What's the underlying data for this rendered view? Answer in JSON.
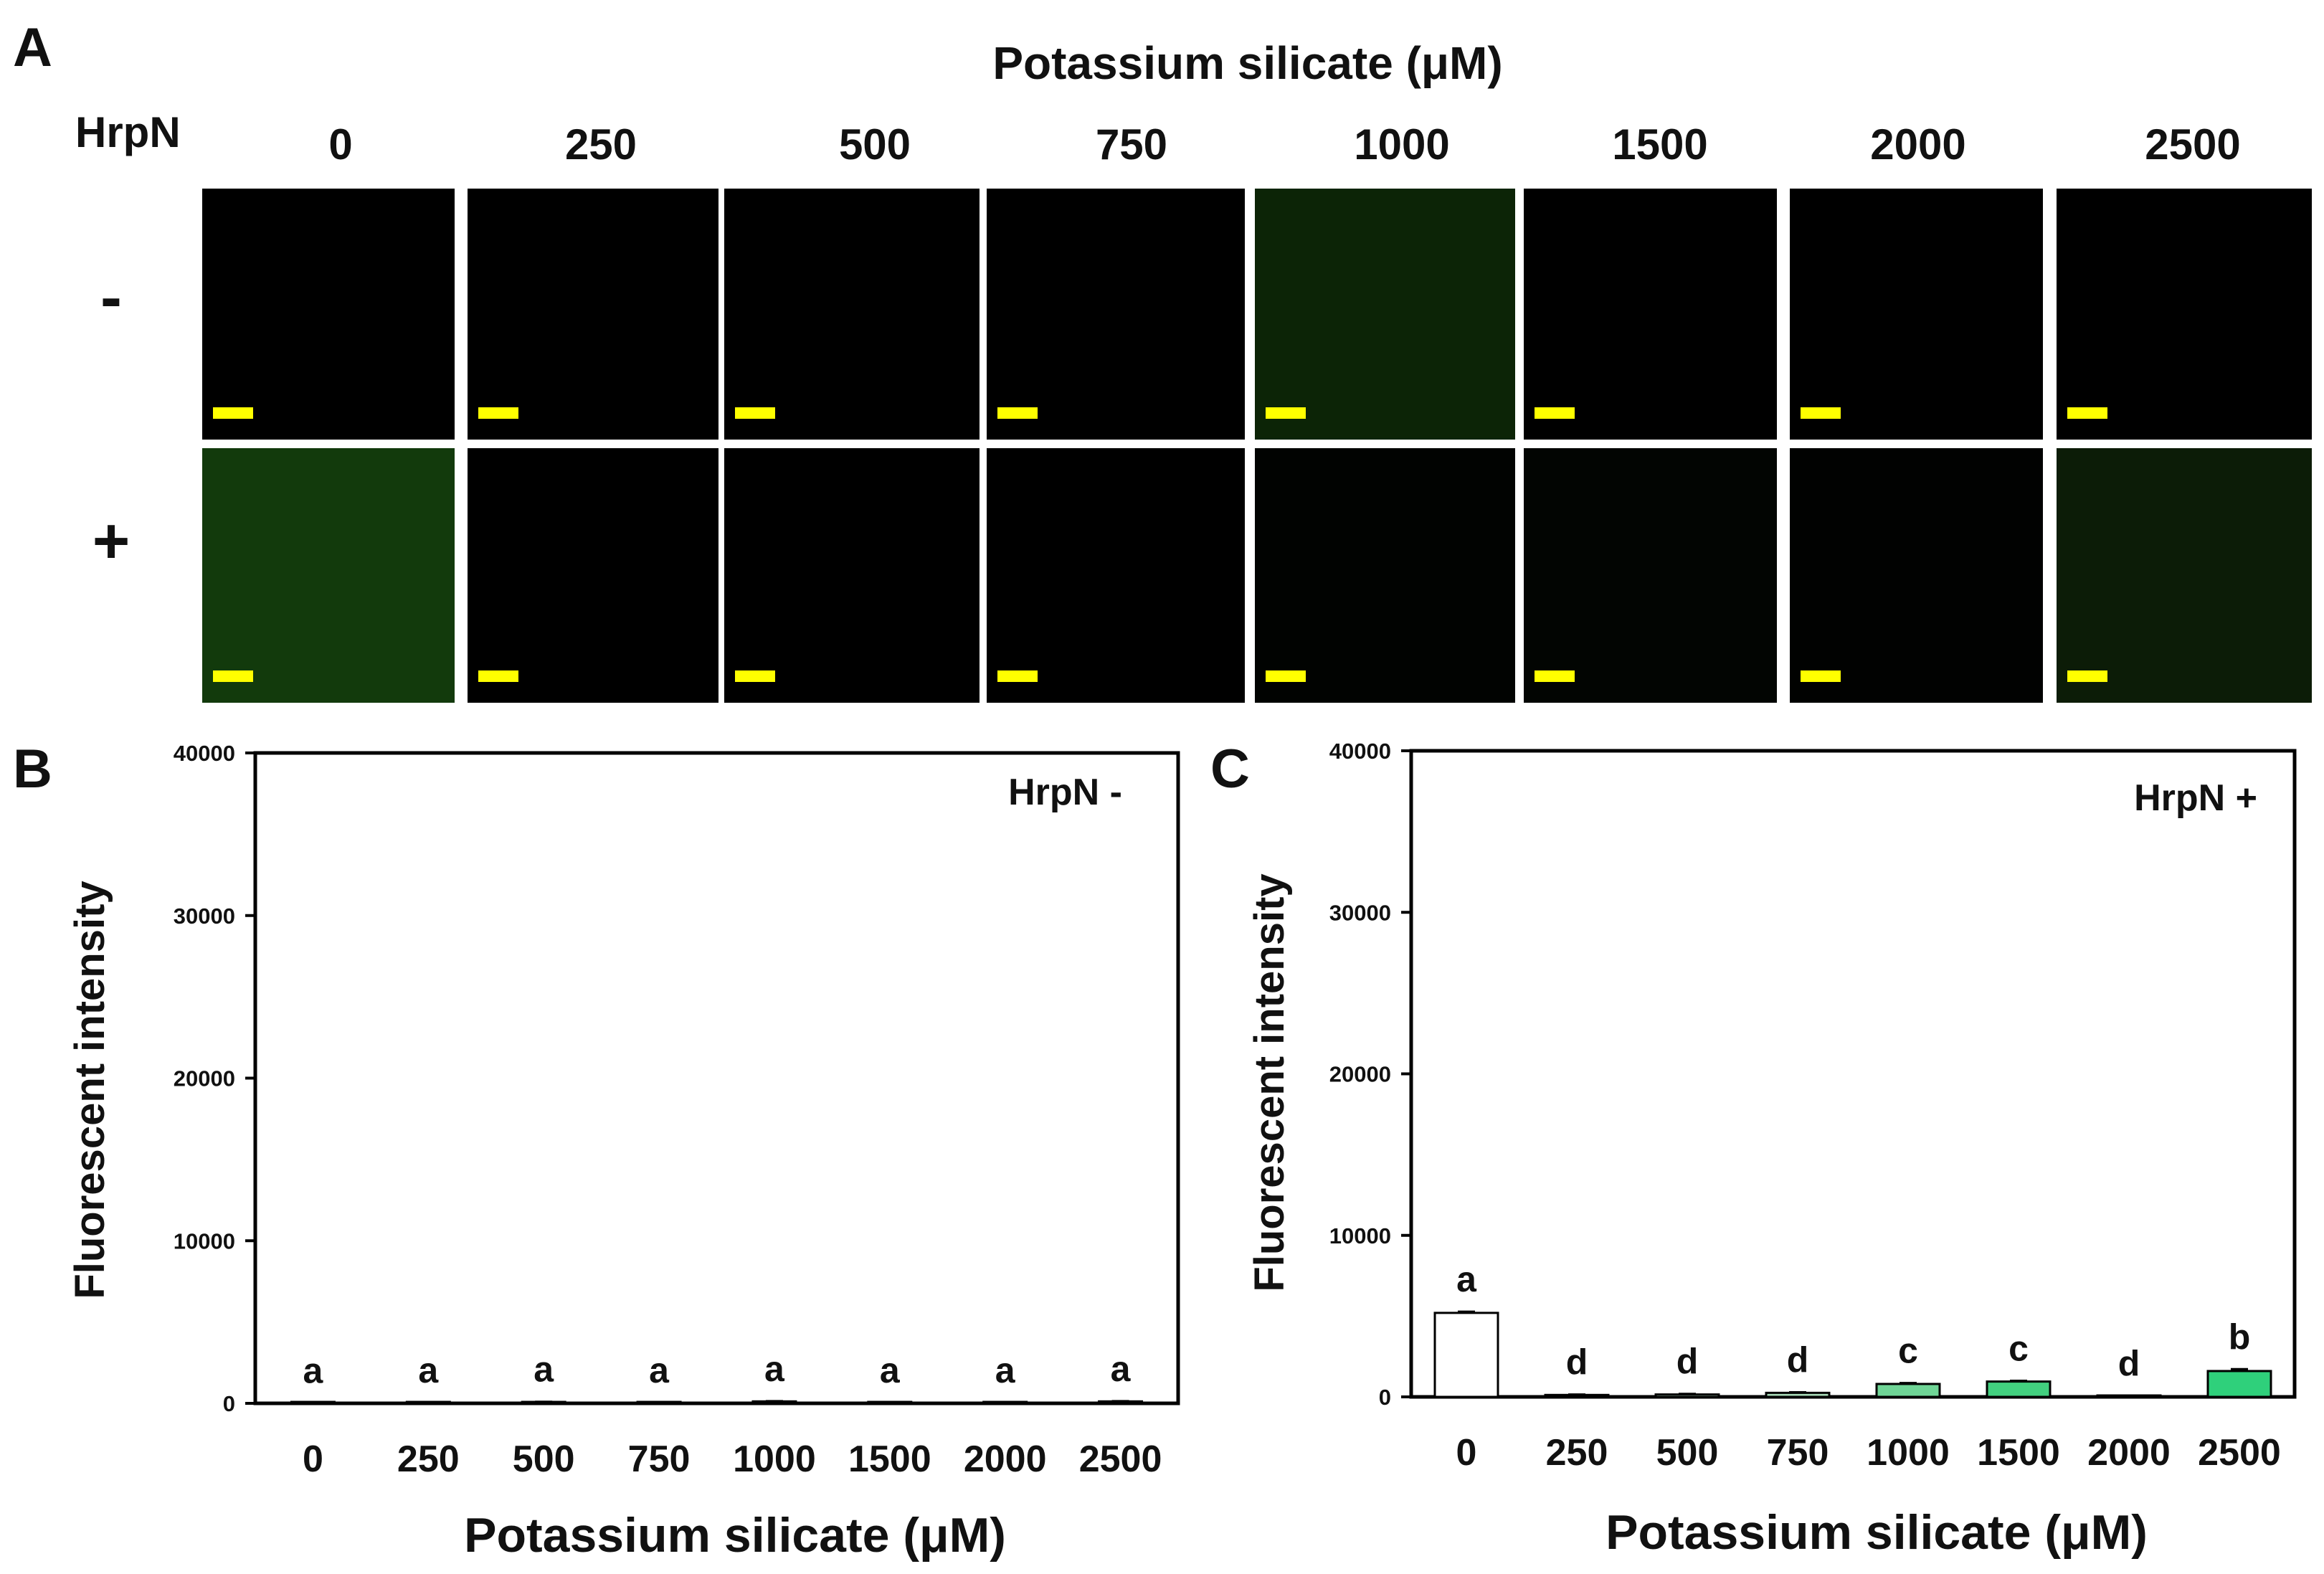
{
  "panel_a": {
    "letter": "A",
    "title": "Potassium silicate (μM)",
    "row_header": "HrpN",
    "columns": [
      "0",
      "250",
      "500",
      "750",
      "1000",
      "1500",
      "2000",
      "2500"
    ],
    "rows": [
      {
        "label": "-",
        "tints": [
          "#000000",
          "#000000",
          "#000000",
          "#000000",
          "#0c2406",
          "#000000",
          "#000000",
          "#000000"
        ]
      },
      {
        "label": "+",
        "tints": [
          "#123a0c",
          "#000000",
          "#000000",
          "#000000",
          "#010301",
          "#020502",
          "#010201",
          "#0c1c07"
        ]
      }
    ],
    "scale_bar_color": "#ffff00"
  },
  "chart_data": [
    {
      "letter": "B",
      "type": "bar",
      "title": "HrpN -",
      "xlabel": "Potassium silicate (μM)",
      "ylabel": "Fluorescent intensity",
      "ylim": [
        0,
        40000
      ],
      "yticks": [
        "0",
        "10000",
        "20000",
        "30000",
        "40000"
      ],
      "categories": [
        "0",
        "250",
        "500",
        "750",
        "1000",
        "1500",
        "2000",
        "2500"
      ],
      "values": [
        20,
        30,
        80,
        30,
        120,
        30,
        40,
        120
      ],
      "errors": [
        10,
        10,
        20,
        10,
        20,
        10,
        10,
        20
      ],
      "significance": [
        "a",
        "a",
        "a",
        "a",
        "a",
        "a",
        "a",
        "a"
      ],
      "bar_colors": [
        "#ffffff",
        "#ffffff",
        "#ffffff",
        "#ffffff",
        "#ffffff",
        "#ffffff",
        "#ffffff",
        "#ffffff"
      ]
    },
    {
      "letter": "C",
      "type": "bar",
      "title": "HrpN +",
      "xlabel": "Potassium silicate (μM)",
      "ylabel": "Fluorescent intensity",
      "ylim": [
        0,
        40000
      ],
      "yticks": [
        "0",
        "10000",
        "20000",
        "30000",
        "40000"
      ],
      "categories": [
        "0",
        "250",
        "500",
        "750",
        "1000",
        "1500",
        "2000",
        "2500"
      ],
      "values": [
        5200,
        120,
        150,
        250,
        800,
        950,
        50,
        1600
      ],
      "errors": [
        80,
        30,
        40,
        40,
        60,
        50,
        20,
        120
      ],
      "significance": [
        "a",
        "d",
        "d",
        "d",
        "c",
        "c",
        "d",
        "b"
      ],
      "bar_colors": [
        "#ffffff",
        "#cfe9d9",
        "#b9e3c6",
        "#a9dcb9",
        "#6fd596",
        "#42d07f",
        "#5dd08c",
        "#2fd07b"
      ]
    }
  ]
}
